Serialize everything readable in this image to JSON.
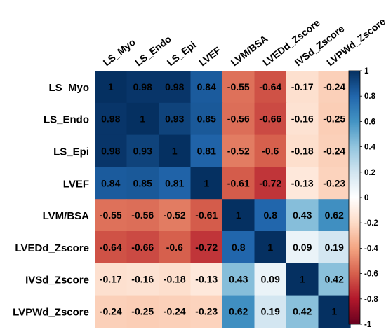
{
  "chart_data": {
    "type": "heatmap",
    "title": "",
    "variables": [
      "LS_Myo",
      "LS_Endo",
      "LS_Epi",
      "LVEF",
      "LVM/BSA",
      "LVEDd_Zscore",
      "IVSd_Zscore",
      "LVPWd_Zscore"
    ],
    "matrix": [
      [
        1,
        0.98,
        0.98,
        0.84,
        -0.55,
        -0.64,
        -0.17,
        -0.24
      ],
      [
        0.98,
        1,
        0.93,
        0.85,
        -0.56,
        -0.66,
        -0.16,
        -0.25
      ],
      [
        0.98,
        0.93,
        1,
        0.81,
        -0.52,
        -0.6,
        -0.18,
        -0.24
      ],
      [
        0.84,
        0.85,
        0.81,
        1,
        -0.61,
        -0.72,
        -0.13,
        -0.23
      ],
      [
        -0.55,
        -0.56,
        -0.52,
        -0.61,
        1,
        0.8,
        0.43,
        0.62
      ],
      [
        -0.64,
        -0.66,
        -0.6,
        -0.72,
        0.8,
        1,
        0.09,
        0.19
      ],
      [
        -0.17,
        -0.16,
        -0.18,
        -0.13,
        0.43,
        0.09,
        1,
        0.42
      ],
      [
        -0.24,
        -0.25,
        -0.24,
        -0.23,
        0.62,
        0.19,
        0.42,
        1
      ]
    ],
    "colorbar": {
      "range": [
        -1,
        1
      ],
      "ticks": [
        1,
        0.8,
        0.6,
        0.4,
        0.2,
        0,
        -0.2,
        -0.4,
        -0.6,
        -0.8,
        -1
      ],
      "tick_labels": [
        "1",
        "0.8",
        "0.6",
        "0.4",
        "0.2",
        "0",
        "-0.2",
        "-0.4",
        "-0.6",
        "-0.8",
        "-1"
      ],
      "colors": {
        "negative": "#67001f",
        "mid_negative": "#f4a582",
        "zero": "#ffffff",
        "mid_positive": "#92c5de",
        "positive": "#053061"
      },
      "placement": "right"
    },
    "legend_placement": "right",
    "grid": false
  }
}
